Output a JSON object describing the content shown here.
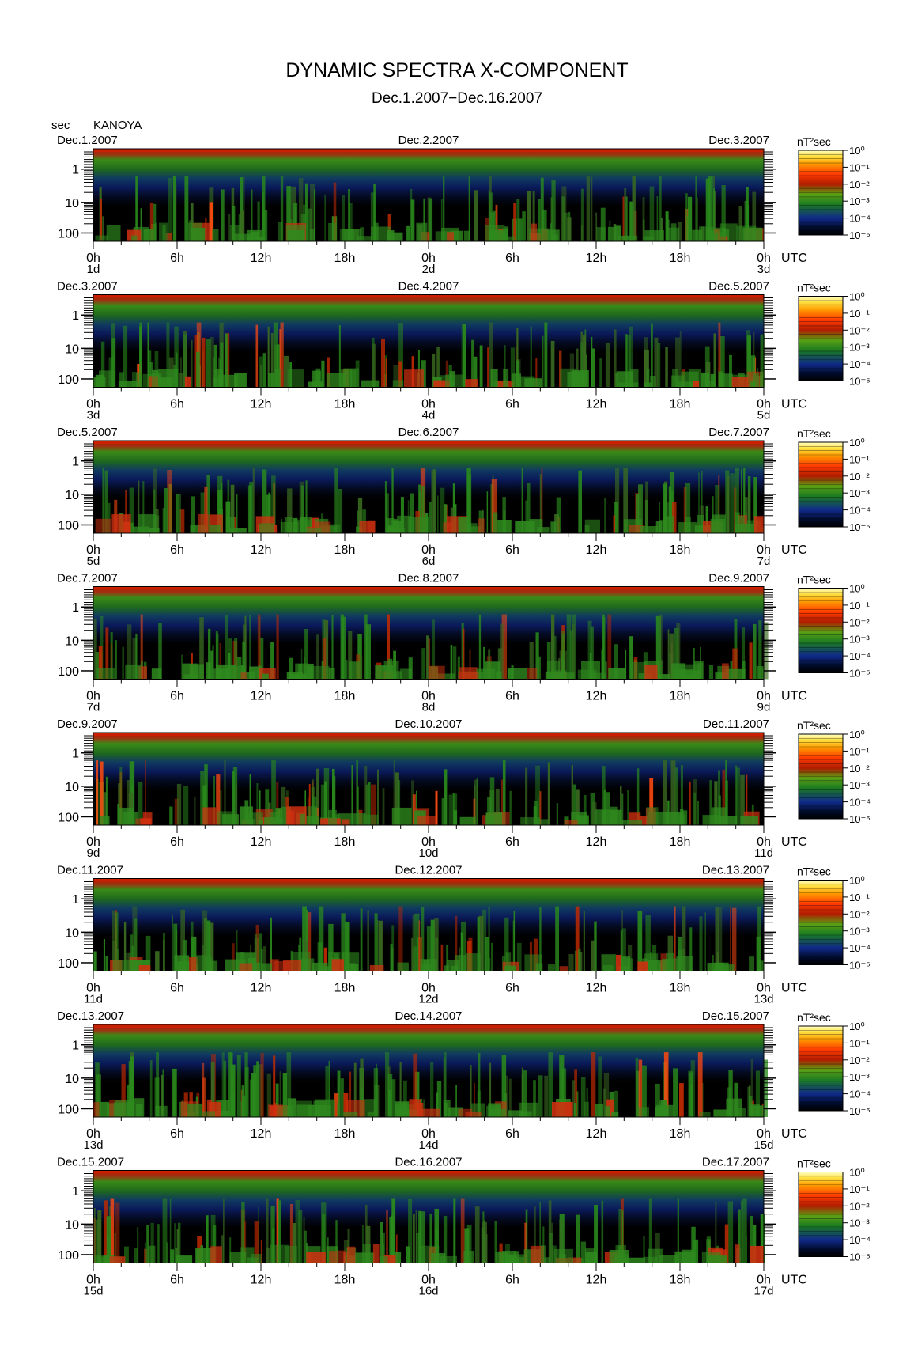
{
  "title": "DYNAMIC SPECTRA X-COMPONENT",
  "subtitle": "Dec.1.2007−Dec.16.2007",
  "unit_label": "sec",
  "station": "KANOYA",
  "colorbar_unit": "nT²sec",
  "colorbar_ticks": [
    "10⁰",
    "10⁻¹",
    "10⁻²",
    "10⁻³",
    "10⁻⁴",
    "10⁻⁵"
  ],
  "utc_label": "UTC",
  "chart_data": {
    "type": "heatmap",
    "x_ticks": [
      "0h",
      "6h",
      "12h",
      "18h",
      "0h",
      "6h",
      "12h",
      "18h",
      "0h"
    ],
    "y_ticks": [
      "1",
      "10",
      "100"
    ],
    "yscale": "log",
    "color_scale": "log",
    "color_range": [
      "10⁻⁵",
      "10⁰"
    ],
    "colors": [
      "#000000",
      "#000a28",
      "#102a8a",
      "#1a7a22",
      "#5aa014",
      "#b01c00",
      "#ff3a00",
      "#ff9a00",
      "#ffe040",
      "#ffffc8"
    ],
    "panels": [
      {
        "date_left": "Dec.1.2007",
        "date_mid": "Dec.2.2007",
        "date_right": "Dec.3.2007",
        "day_left": "1d",
        "day_mid": "2d",
        "day_right": "3d"
      },
      {
        "date_left": "Dec.3.2007",
        "date_mid": "Dec.4.2007",
        "date_right": "Dec.5.2007",
        "day_left": "3d",
        "day_mid": "4d",
        "day_right": "5d"
      },
      {
        "date_left": "Dec.5.2007",
        "date_mid": "Dec.6.2007",
        "date_right": "Dec.7.2007",
        "day_left": "5d",
        "day_mid": "6d",
        "day_right": "7d"
      },
      {
        "date_left": "Dec.7.2007",
        "date_mid": "Dec.8.2007",
        "date_right": "Dec.9.2007",
        "day_left": "7d",
        "day_mid": "8d",
        "day_right": "9d"
      },
      {
        "date_left": "Dec.9.2007",
        "date_mid": "Dec.10.2007",
        "date_right": "Dec.11.2007",
        "day_left": "9d",
        "day_mid": "10d",
        "day_right": "11d"
      },
      {
        "date_left": "Dec.11.2007",
        "date_mid": "Dec.12.2007",
        "date_right": "Dec.13.2007",
        "day_left": "11d",
        "day_mid": "12d",
        "day_right": "13d"
      },
      {
        "date_left": "Dec.13.2007",
        "date_mid": "Dec.14.2007",
        "date_right": "Dec.15.2007",
        "day_left": "13d",
        "day_mid": "14d",
        "day_right": "15d"
      },
      {
        "date_left": "Dec.15.2007",
        "date_mid": "Dec.16.2007",
        "date_right": "Dec.17.2007",
        "day_left": "15d",
        "day_mid": "16d",
        "day_right": "17d"
      }
    ]
  }
}
